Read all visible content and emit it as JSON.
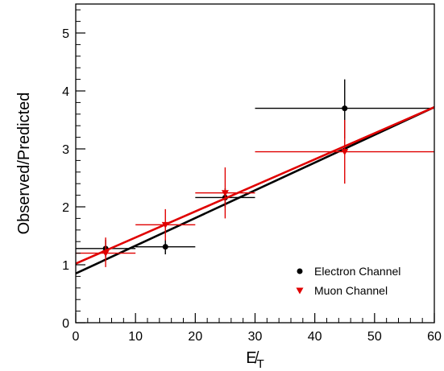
{
  "chart_data": {
    "type": "scatter",
    "title": "",
    "xlabel": "E̸",
    "xlabel_subscript": "T",
    "ylabel": "Observed/Predicted",
    "xlim": [
      0,
      60
    ],
    "ylim": [
      0,
      5.5
    ],
    "x_ticks": [
      0,
      10,
      20,
      30,
      40,
      50,
      60
    ],
    "x_tick_labels": [
      "0",
      "10",
      "20",
      "30",
      "40",
      "50",
      "60"
    ],
    "y_ticks": [
      0,
      1,
      2,
      3,
      4,
      5
    ],
    "y_tick_labels": [
      "0",
      "1",
      "2",
      "3",
      "4",
      "5"
    ],
    "grid": false,
    "legend_position": "bottom-right",
    "series": [
      {
        "name": "Electron Channel",
        "marker": "circle",
        "color": "#000000",
        "points": [
          {
            "x": 5,
            "y": 1.28,
            "x_low": 0,
            "x_high": 10,
            "y_low": 1.13,
            "y_high": 1.43
          },
          {
            "x": 15,
            "y": 1.31,
            "x_low": 10,
            "x_high": 20,
            "y_low": 1.18,
            "y_high": 1.44
          },
          {
            "x": 25,
            "y": 2.16,
            "x_low": 20,
            "x_high": 30,
            "y_low": 1.99,
            "y_high": 2.32
          },
          {
            "x": 45,
            "y": 3.7,
            "x_low": 30,
            "x_high": 60,
            "y_low": 3.18,
            "y_high": 4.2
          }
        ],
        "fit": {
          "x0": 0,
          "y0": 0.85,
          "x1": 60,
          "y1": 3.72
        }
      },
      {
        "name": "Muon Channel",
        "marker": "triangle-down",
        "color": "#e00000",
        "points": [
          {
            "x": 5,
            "y": 1.2,
            "x_low": 0,
            "x_high": 10,
            "y_low": 0.96,
            "y_high": 1.47
          },
          {
            "x": 15,
            "y": 1.69,
            "x_low": 10,
            "x_high": 20,
            "y_low": 1.42,
            "y_high": 1.96
          },
          {
            "x": 25,
            "y": 2.24,
            "x_low": 20,
            "x_high": 30,
            "y_low": 1.8,
            "y_high": 2.68
          },
          {
            "x": 45,
            "y": 2.95,
            "x_low": 30,
            "x_high": 60,
            "y_low": 2.4,
            "y_high": 3.5
          }
        ],
        "fit": {
          "x0": 0,
          "y0": 1.02,
          "x1": 60,
          "y1": 3.72
        }
      }
    ]
  }
}
